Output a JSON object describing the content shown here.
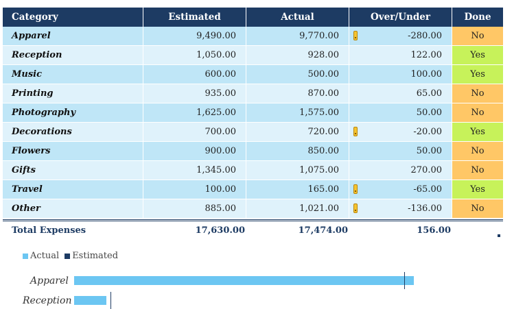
{
  "table": {
    "headers": [
      "Category",
      "Estimated",
      "Actual",
      "Over/Under",
      "Done"
    ],
    "rows": [
      {
        "category": "Apparel",
        "estimated": "9,490.00",
        "actual": "9,770.00",
        "over_under": "-280.00",
        "done": "No",
        "warn": true
      },
      {
        "category": "Reception",
        "estimated": "1,050.00",
        "actual": "928.00",
        "over_under": "122.00",
        "done": "Yes",
        "warn": false
      },
      {
        "category": "Music",
        "estimated": "600.00",
        "actual": "500.00",
        "over_under": "100.00",
        "done": "Yes",
        "warn": false
      },
      {
        "category": "Printing",
        "estimated": "935.00",
        "actual": "870.00",
        "over_under": "65.00",
        "done": "No",
        "warn": false
      },
      {
        "category": "Photography",
        "estimated": "1,625.00",
        "actual": "1,575.00",
        "over_under": "50.00",
        "done": "No",
        "warn": false
      },
      {
        "category": "Decorations",
        "estimated": "700.00",
        "actual": "720.00",
        "over_under": "-20.00",
        "done": "Yes",
        "warn": true
      },
      {
        "category": "Flowers",
        "estimated": "900.00",
        "actual": "850.00",
        "over_under": "50.00",
        "done": "No",
        "warn": false
      },
      {
        "category": "Gifts",
        "estimated": "1,345.00",
        "actual": "1,075.00",
        "over_under": "270.00",
        "done": "No",
        "warn": false
      },
      {
        "category": "Travel",
        "estimated": "100.00",
        "actual": "165.00",
        "over_under": "-65.00",
        "done": "Yes",
        "warn": true
      },
      {
        "category": "Other",
        "estimated": "885.00",
        "actual": "1,021.00",
        "over_under": "-136.00",
        "done": "No",
        "warn": true
      }
    ],
    "total": {
      "label": "Total Expenses",
      "estimated": "17,630.00",
      "actual": "17,474.00",
      "over_under": "156.00"
    }
  },
  "colors": {
    "header_bg": "#1d3b63",
    "row_odd": "#bfe6f7",
    "row_even": "#dff2fb",
    "done_no": "#ffc766",
    "done_yes": "#c7f25a",
    "warn_icon": "#f5c431",
    "actual_series": "#6cc6f2",
    "estimated_series": "#1d3b63"
  },
  "chart_data": {
    "type": "bar",
    "orientation": "horizontal",
    "categories": [
      "Apparel",
      "Reception"
    ],
    "series": [
      {
        "name": "Actual",
        "values": [
          9770,
          928
        ]
      },
      {
        "name": "Estimated",
        "values": [
          9490,
          1050
        ]
      }
    ],
    "legend": [
      "Actual",
      "Estimated"
    ],
    "legend_position": "top-left"
  }
}
